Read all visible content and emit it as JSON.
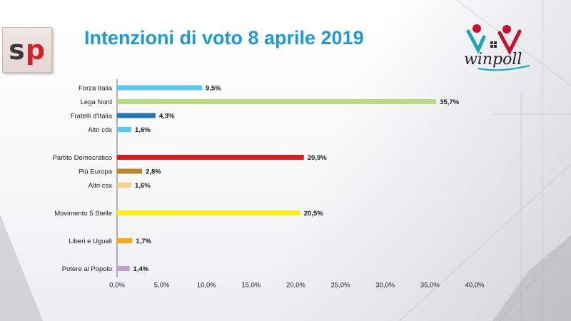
{
  "header": {
    "logo_left": {
      "s": "s",
      "p": "p"
    },
    "title": "Intenzioni di voto 8 aprile 2019",
    "logo_right": "winpoll"
  },
  "colors": {
    "title": "#1d9ad6",
    "forza_italia": "#5bc8f0",
    "lega_nord": "#b5dc7d",
    "fratelli_italia": "#1f77b4",
    "altri_cdx": "#5bc8f0",
    "pd": "#e31a1c",
    "piu_europa": "#b8862b",
    "altri_csx": "#f3cf8a",
    "m5s": "#fff200",
    "leu": "#f5a623",
    "pap": "#c39bd3"
  },
  "chart_data": {
    "type": "bar",
    "orientation": "horizontal",
    "title": "Intenzioni di voto 8 aprile 2019",
    "categories": [
      "Forza Italia",
      "Lega Nord",
      "Fratelli d'Italia",
      "Altri cdx",
      "Partito Democratico",
      "Più Europa",
      "Altri csx",
      "Movimento 5 Stelle",
      "Liberi e Uguali",
      "Potere al Popolo"
    ],
    "values": [
      9.5,
      35.7,
      4.3,
      1.6,
      20.9,
      2.8,
      1.6,
      20.5,
      1.7,
      1.4
    ],
    "value_labels": [
      "9,5%",
      "35,7%",
      "4,3%",
      "1,6%",
      "20,9%",
      "2,8%",
      "1,6%",
      "20,5%",
      "1,7%",
      "1,4%"
    ],
    "groups": [
      [
        "Forza Italia",
        "Lega Nord",
        "Fratelli d'Italia",
        "Altri cdx"
      ],
      [
        "Partito Democratico",
        "Più Europa",
        "Altri csx"
      ],
      [
        "Movimento 5 Stelle"
      ],
      [
        "Liberi e Uguali"
      ],
      [
        "Potere al Popolo"
      ]
    ],
    "bar_colors": [
      "#5bc8f0",
      "#b5dc7d",
      "#1f77b4",
      "#5bc8f0",
      "#e31a1c",
      "#b8862b",
      "#f3cf8a",
      "#fff200",
      "#f5a623",
      "#c39bd3"
    ],
    "xlim": [
      0,
      40
    ],
    "x_ticks": [
      0,
      5,
      10,
      15,
      20,
      25,
      30,
      35,
      40
    ],
    "x_tick_labels": [
      "0,0%",
      "5,0%",
      "10,0%",
      "15,0%",
      "20,0%",
      "25,0%",
      "30,0%",
      "35,0%",
      "40,0%"
    ],
    "xlabel": "",
    "ylabel": "",
    "grid": false,
    "legend": "none"
  }
}
